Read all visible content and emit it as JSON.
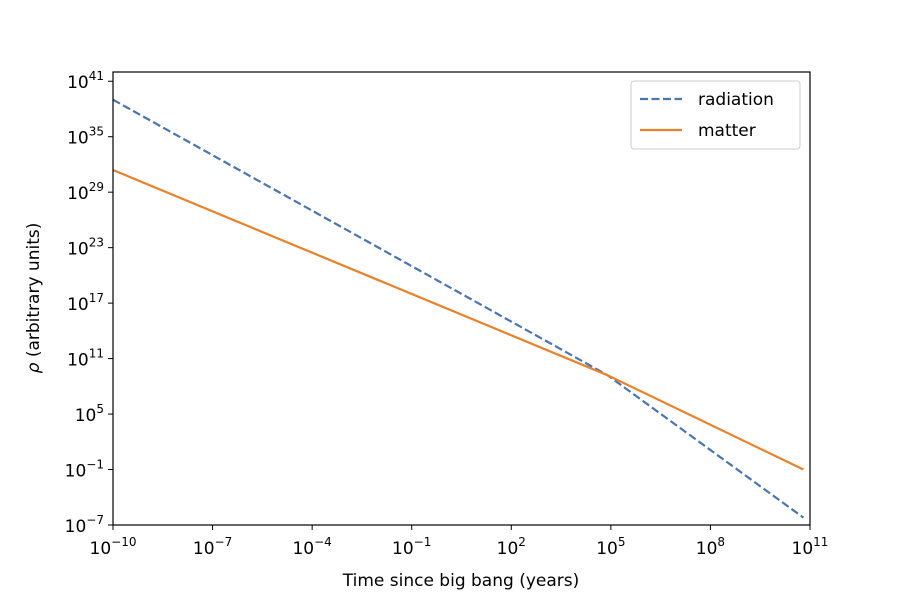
{
  "chart_data": {
    "type": "line",
    "title": "",
    "xlabel": "Time since big bang (years)",
    "ylabel_symbol": "ρ",
    "ylabel": " (arbitrary units)",
    "xscale": "log",
    "yscale": "log",
    "xlim_exp": [
      -10,
      11
    ],
    "ylim_exp": [
      -7,
      42
    ],
    "x_ticks": [
      {
        "base": "10",
        "exp": "−10"
      },
      {
        "base": "10",
        "exp": "−7"
      },
      {
        "base": "10",
        "exp": "−4"
      },
      {
        "base": "10",
        "exp": "−1"
      },
      {
        "base": "10",
        "exp": "2"
      },
      {
        "base": "10",
        "exp": "5"
      },
      {
        "base": "10",
        "exp": "8"
      },
      {
        "base": "10",
        "exp": "11"
      }
    ],
    "y_ticks": [
      {
        "base": "10",
        "exp": "−7"
      },
      {
        "base": "10",
        "exp": "−1"
      },
      {
        "base": "10",
        "exp": "5"
      },
      {
        "base": "10",
        "exp": "11"
      },
      {
        "base": "10",
        "exp": "17"
      },
      {
        "base": "10",
        "exp": "23"
      },
      {
        "base": "10",
        "exp": "29"
      },
      {
        "base": "10",
        "exp": "35"
      },
      {
        "base": "10",
        "exp": "41"
      }
    ],
    "grid": false,
    "legend_position": "top-right",
    "series": [
      {
        "name": "radiation",
        "color": "#4a76ad",
        "dash": "dashed",
        "points_log10": [
          [
            -10,
            39
          ],
          [
            4.9,
            9.2
          ],
          [
            10.8,
            -6.2
          ]
        ]
      },
      {
        "name": "matter",
        "color": "#e8822a",
        "dash": "solid",
        "points_log10": [
          [
            -10,
            31.4
          ],
          [
            4.9,
            9.2
          ],
          [
            10.8,
            -1.0
          ]
        ]
      }
    ]
  }
}
